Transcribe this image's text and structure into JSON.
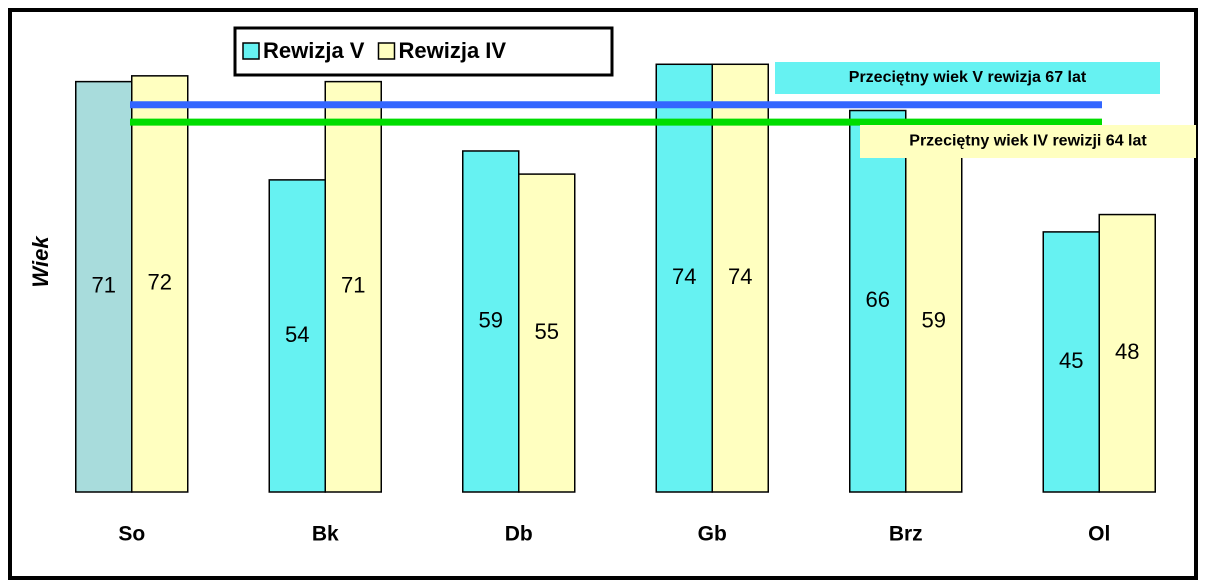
{
  "chart_data": {
    "type": "bar",
    "y_label": "Wiek",
    "categories": [
      "So",
      "Bk",
      "Db",
      "Gb",
      "Brz",
      "Ol"
    ],
    "series": [
      {
        "name": "Rewizja V",
        "color": "#66f2f2",
        "point_colors": [
          "#a8dcdc",
          "#66f2f2",
          "#66f2f2",
          "#66f2f2",
          "#66f2f2",
          "#66f2f2"
        ],
        "values": [
          71,
          54,
          59,
          74,
          66,
          45
        ]
      },
      {
        "name": "Rewizja IV",
        "color": "#ffffc0",
        "values": [
          72,
          71,
          55,
          74,
          59,
          48
        ]
      }
    ],
    "reference_lines": [
      {
        "label": "Przeciętny wiek V rewizja 67 lat",
        "value": 67,
        "color": "#3366ff",
        "box_color": "#66f2f2"
      },
      {
        "label": "Przeciętny wiek IV rewizji 64 lat",
        "value": 64,
        "color": "#00dd00",
        "box_color": "#ffffc0"
      }
    ],
    "ylim": [
      0,
      80
    ]
  }
}
